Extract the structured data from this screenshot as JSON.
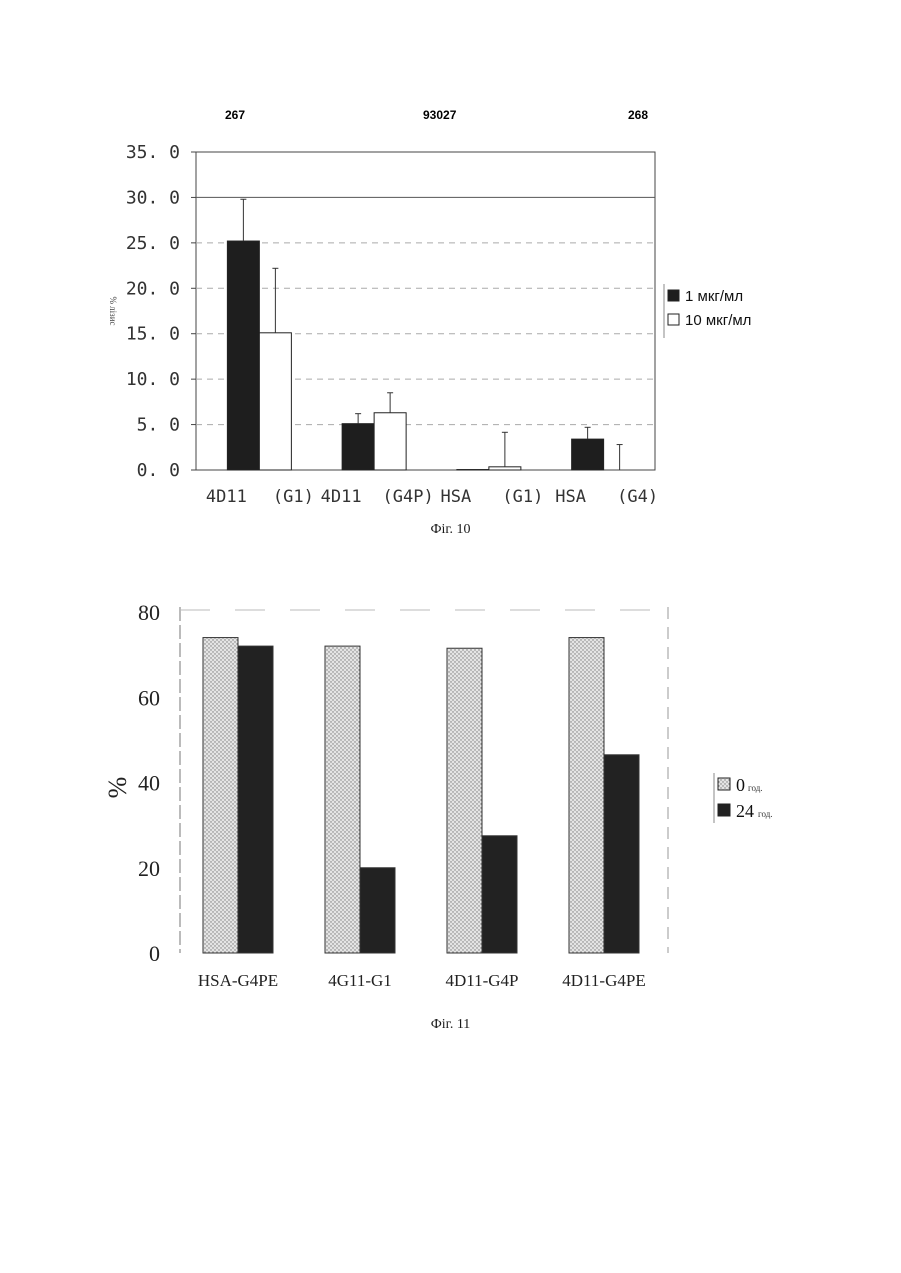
{
  "page_header": {
    "left": "267",
    "center": "93027",
    "right": "268"
  },
  "chart_data": [
    {
      "type": "bar",
      "caption": "Фіг. 10",
      "ylabel": "% лізис",
      "ylim": [
        0,
        35
      ],
      "yticks": [
        "0. 0",
        "5. 0",
        "10. 0",
        "15. 0",
        "20. 0",
        "25. 0",
        "30. 0",
        "35. 0"
      ],
      "categories": [
        [
          "4D11",
          "(G1)"
        ],
        [
          "4D11",
          "(G4P)"
        ],
        [
          "HSA",
          "(G1)"
        ],
        [
          "HSA",
          "(G4)"
        ]
      ],
      "series": [
        {
          "name": "1 мкг/мл",
          "color": "#1e1e1e",
          "values": [
            25.2,
            5.1,
            0.05,
            3.4
          ],
          "error": [
            4.6,
            1.1,
            0.0,
            1.3
          ]
        },
        {
          "name": "10 мкг/мл",
          "color": "#ffffff",
          "values": [
            15.1,
            6.3,
            0.35,
            0.0
          ],
          "error": [
            7.1,
            2.2,
            3.8,
            2.8
          ]
        }
      ],
      "grid": true,
      "legend": "right"
    },
    {
      "type": "bar",
      "caption": "Фіг. 11",
      "ylabel": "%",
      "ylim": [
        0,
        80
      ],
      "yticks": [
        "0",
        "20",
        "40",
        "60",
        "80"
      ],
      "categories": [
        "HSA-G4PE",
        "4G11-G1",
        "4D11-G4P",
        "4D11-G4PE"
      ],
      "series": [
        {
          "name": "0",
          "unit": "год.",
          "color": "#dcdcdc",
          "values": [
            74,
            72,
            71.5,
            74
          ]
        },
        {
          "name": "24",
          "unit": "год.",
          "color": "#222222",
          "values": [
            72,
            20,
            27.5,
            46.5
          ]
        }
      ],
      "grid": false,
      "legend": "right"
    }
  ]
}
